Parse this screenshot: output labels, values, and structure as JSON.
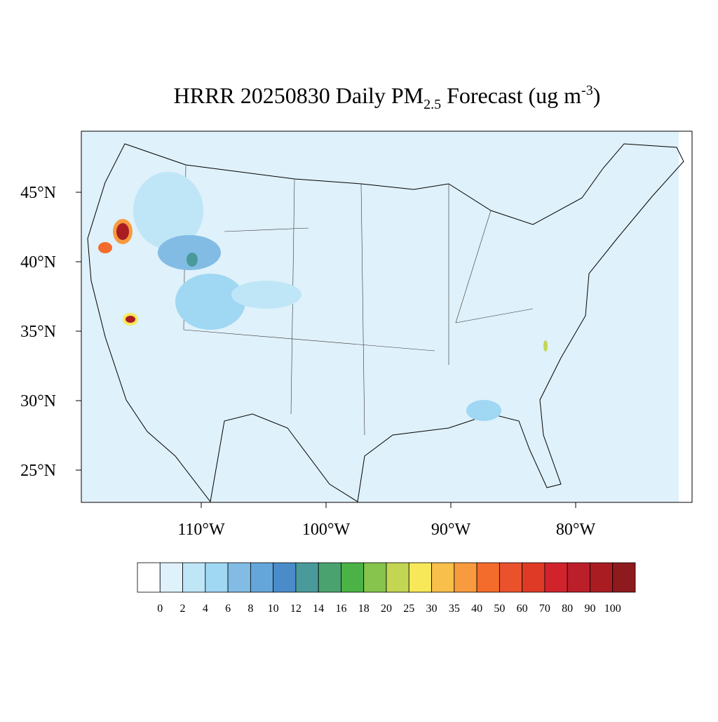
{
  "title": {
    "main": "HRRR 20250830 Daily PM",
    "subscript": "2.5",
    "middle": " Forecast (ug m",
    "superscript": "-3",
    "end": ")"
  },
  "map": {
    "lat_ticks": [
      {
        "value": 45,
        "label": "45°N"
      },
      {
        "value": 40,
        "label": "40°N"
      },
      {
        "value": 35,
        "label": "35°N"
      },
      {
        "value": 30,
        "label": "30°N"
      },
      {
        "value": 25,
        "label": "25°N"
      }
    ],
    "lon_ticks": [
      {
        "value": -110,
        "label": "110°W"
      },
      {
        "value": -100,
        "label": "100°W"
      },
      {
        "value": -90,
        "label": "90°W"
      },
      {
        "value": -80,
        "label": "80°W"
      }
    ]
  },
  "colorbar": {
    "levels": [
      0,
      2,
      4,
      6,
      8,
      10,
      12,
      14,
      16,
      18,
      20,
      25,
      30,
      35,
      40,
      50,
      60,
      70,
      80,
      90,
      100
    ],
    "colors": [
      "#ffffff",
      "#dff1fa",
      "#bfe6f7",
      "#a0d7f3",
      "#82bce5",
      "#64a6da",
      "#4a8cca",
      "#4a9a9b",
      "#4aa36e",
      "#4bb246",
      "#86c44e",
      "#c3d654",
      "#f7e85a",
      "#f8bf4a",
      "#f89b3e",
      "#f46c2c",
      "#e9522b",
      "#df3a26",
      "#d1232c",
      "#bb1f2a",
      "#a91c22",
      "#8e1a1e"
    ]
  }
}
